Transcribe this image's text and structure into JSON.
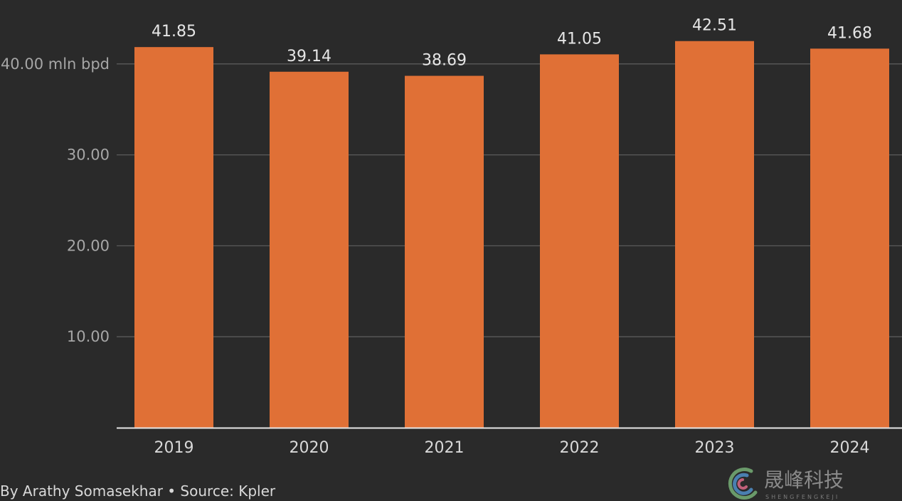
{
  "chart_data": {
    "type": "bar",
    "categories": [
      "2019",
      "2020",
      "2021",
      "2022",
      "2023",
      "2024"
    ],
    "values": [
      41.85,
      39.14,
      38.69,
      41.05,
      42.51,
      41.68
    ],
    "value_labels": [
      "41.85",
      "39.14",
      "38.69",
      "41.05",
      "42.51",
      "41.68"
    ],
    "title": "",
    "xlabel": "",
    "ylabel": "",
    "ylim": [
      0,
      46
    ],
    "y_ticks": [
      {
        "value": 10,
        "label": "10.00"
      },
      {
        "value": 20,
        "label": "20.00"
      },
      {
        "value": 30,
        "label": "30.00"
      },
      {
        "value": 40,
        "label": "40.00 mln bpd"
      }
    ],
    "grid": true,
    "bar_color": "#e07036",
    "gridline_color": "#5a5a5a",
    "axis_color": "#e6e6e6"
  },
  "footer": {
    "credit": "By Arathy Somasekhar • Source: Kpler"
  },
  "watermark": {
    "text": "晟峰科技",
    "subtext": "SHENGFENGKEJI"
  }
}
